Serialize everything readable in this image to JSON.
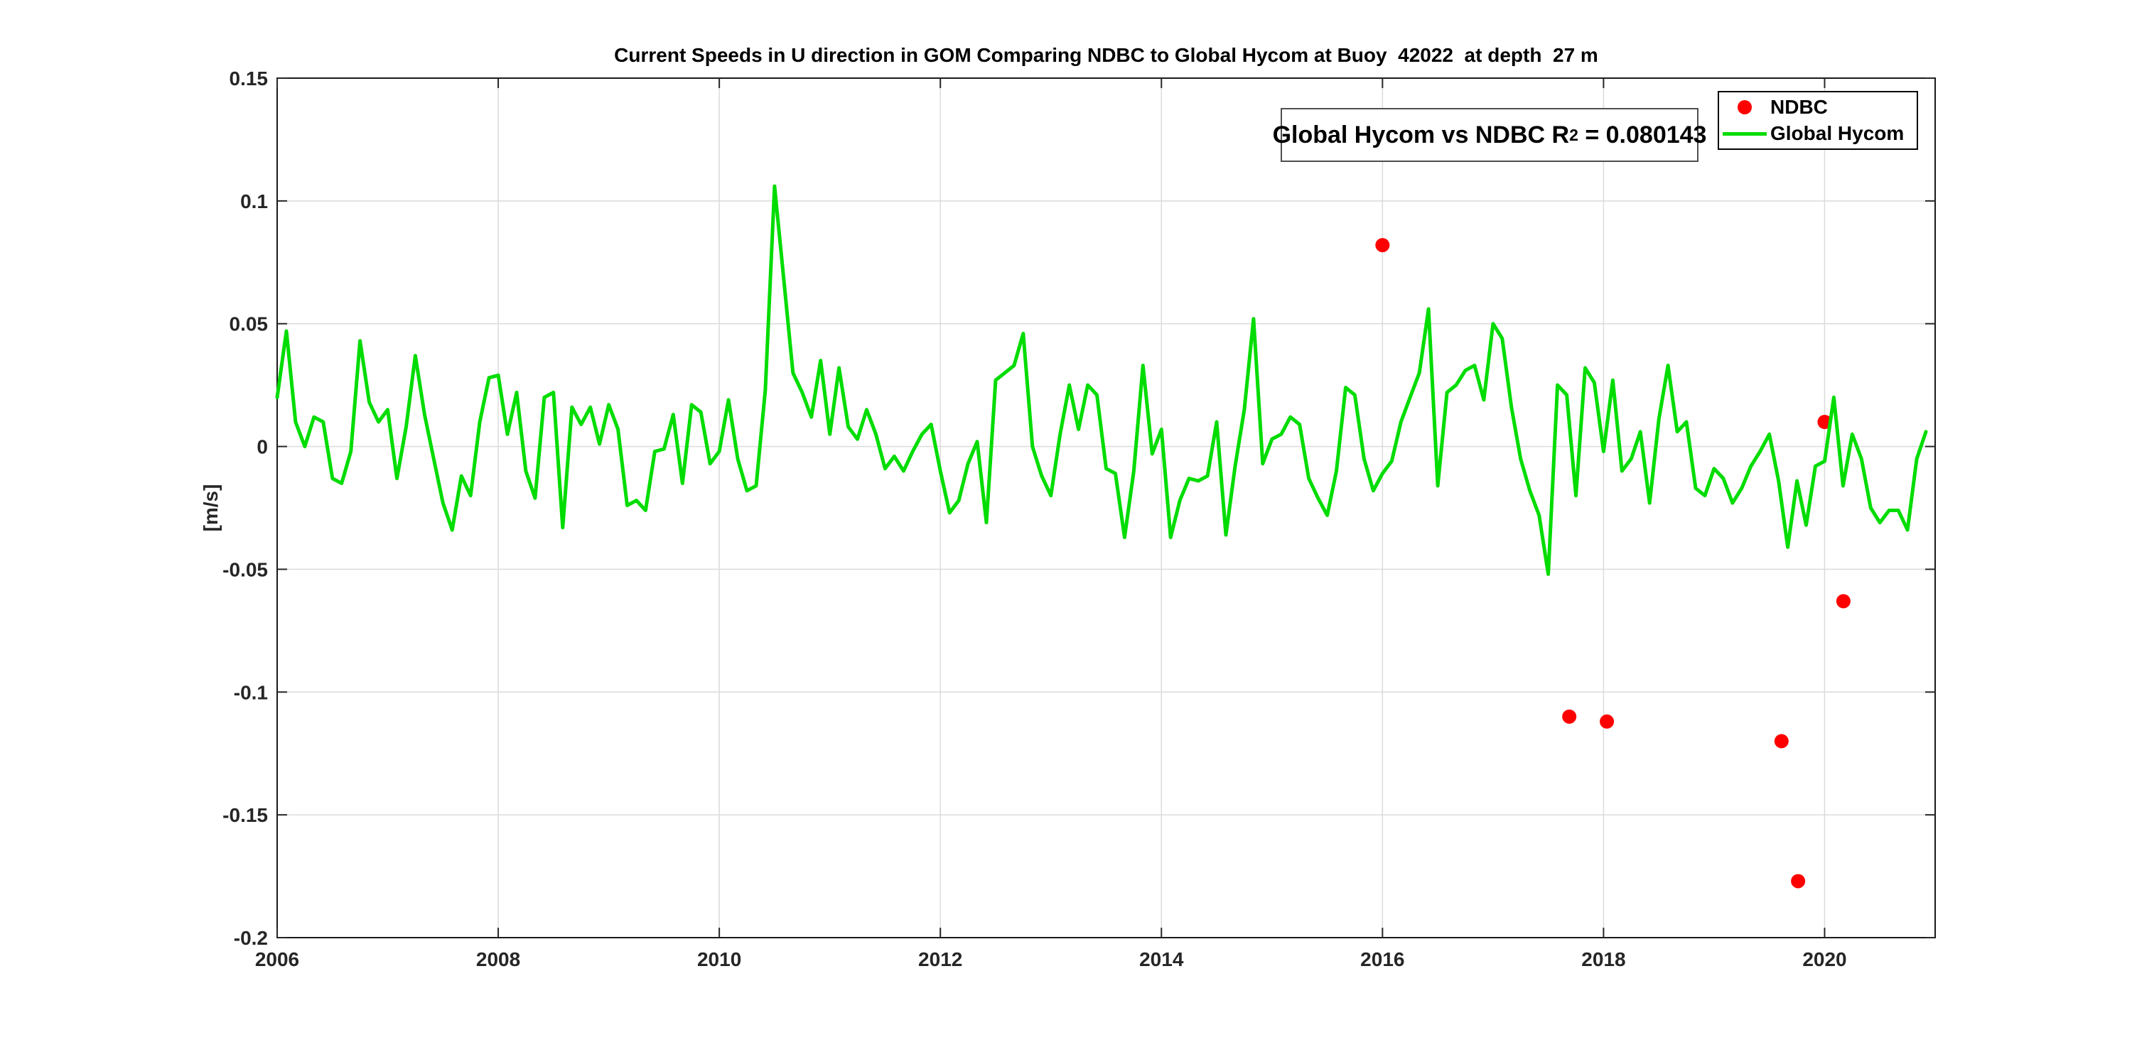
{
  "colors": {
    "background": "#ffffff",
    "axis": "#262626",
    "plot_border": "#1a1a1a",
    "grid": "#dbdbdb",
    "ndbc_red": "#ff0000",
    "hycom_green": "#00dc00"
  },
  "annotation": {
    "prefix": "Global Hycom vs NDBC R",
    "sup": "2",
    "suffix": " = 0.080143"
  },
  "legend": {
    "items": [
      {
        "label": "NDBC",
        "marker": "dot",
        "color": "#ff0000"
      },
      {
        "label": "Global Hycom",
        "marker": "line",
        "color": "#00dc00"
      }
    ]
  },
  "chart_data": {
    "type": "line",
    "title": "Current Speeds in U direction in GOM Comparing NDBC to Global Hycom at Buoy  42022  at depth  27 m",
    "xlabel": "",
    "ylabel": "[m/s]",
    "xlim": [
      2006,
      2021
    ],
    "ylim": [
      -0.2,
      0.15
    ],
    "x_ticks": [
      2006,
      2008,
      2010,
      2012,
      2014,
      2016,
      2018,
      2020
    ],
    "y_ticks": [
      0.15,
      0.1,
      0.05,
      0,
      -0.05,
      -0.1,
      -0.15,
      -0.2
    ],
    "grid": true,
    "legend_position": "top-right",
    "r_squared": 0.080143,
    "series": [
      {
        "name": "NDBC",
        "type": "scatter",
        "color": "#ff0000",
        "marker_radius": 10,
        "points": [
          [
            2016.0,
            0.082
          ],
          [
            2017.69,
            -0.11
          ],
          [
            2018.03,
            -0.112
          ],
          [
            2019.61,
            -0.12
          ],
          [
            2019.76,
            -0.177
          ],
          [
            2020.0,
            0.01
          ],
          [
            2020.17,
            -0.063
          ]
        ]
      },
      {
        "name": "Global Hycom",
        "type": "line",
        "color": "#00dc00",
        "line_width": 5,
        "x_start": 2006.0,
        "x_step": 0.0833333,
        "values": [
          0.02,
          0.047,
          0.01,
          0.0,
          0.012,
          0.01,
          -0.013,
          -0.015,
          -0.002,
          0.043,
          0.018,
          0.01,
          0.015,
          -0.013,
          0.008,
          0.037,
          0.013,
          -0.005,
          -0.023,
          -0.034,
          -0.012,
          -0.02,
          0.01,
          0.028,
          0.029,
          0.005,
          0.022,
          -0.01,
          -0.021,
          0.02,
          0.022,
          -0.033,
          0.016,
          0.009,
          0.016,
          0.001,
          0.017,
          0.007,
          -0.024,
          -0.022,
          -0.026,
          -0.002,
          -0.001,
          0.013,
          -0.015,
          0.017,
          0.014,
          -0.007,
          -0.002,
          0.019,
          -0.005,
          -0.018,
          -0.016,
          0.023,
          0.106,
          0.068,
          0.03,
          0.022,
          0.012,
          0.035,
          0.005,
          0.032,
          0.008,
          0.003,
          0.015,
          0.005,
          -0.009,
          -0.004,
          -0.01,
          -0.002,
          0.005,
          0.009,
          -0.01,
          -0.027,
          -0.022,
          -0.007,
          0.002,
          -0.031,
          0.027,
          0.03,
          0.033,
          0.046,
          0.0,
          -0.012,
          -0.02,
          0.005,
          0.025,
          0.007,
          0.025,
          0.021,
          -0.009,
          -0.011,
          -0.037,
          -0.01,
          0.033,
          -0.003,
          0.007,
          -0.037,
          -0.022,
          -0.013,
          -0.014,
          -0.012,
          0.01,
          -0.036,
          -0.008,
          0.015,
          0.052,
          -0.007,
          0.003,
          0.005,
          0.012,
          0.009,
          -0.013,
          -0.021,
          -0.028,
          -0.01,
          0.024,
          0.021,
          -0.005,
          -0.018,
          -0.011,
          -0.006,
          0.01,
          0.02,
          0.03,
          0.056,
          -0.016,
          0.022,
          0.025,
          0.031,
          0.033,
          0.019,
          0.05,
          0.044,
          0.016,
          -0.005,
          -0.018,
          -0.028,
          -0.052,
          0.025,
          0.021,
          -0.02,
          0.032,
          0.026,
          -0.002,
          0.027,
          -0.01,
          -0.005,
          0.006,
          -0.023,
          0.011,
          0.033,
          0.006,
          0.01,
          -0.017,
          -0.02,
          -0.009,
          -0.013,
          -0.023,
          -0.017,
          -0.008,
          -0.002,
          0.005,
          -0.014,
          -0.041,
          -0.014,
          -0.032,
          -0.008,
          -0.006,
          0.02,
          -0.016,
          0.005,
          -0.005,
          -0.025,
          -0.031,
          -0.026,
          -0.026,
          -0.034,
          -0.005,
          0.006
        ]
      }
    ]
  }
}
